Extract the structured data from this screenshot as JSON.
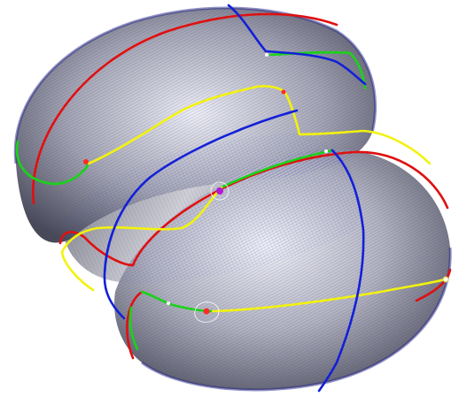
{
  "colors": {
    "background": "#ffffff",
    "mesh_wire": "#2233cc",
    "surface_light": "#e9e9ec",
    "surface_dark": "#4d4d57",
    "curve_red": "#e01010",
    "curve_green": "#19d319",
    "curve_yellow": "#f2f20e",
    "curve_blue": "#1320d8",
    "marker": "#ff2a2a",
    "marker_ring": "#ffffff"
  },
  "curves": [
    {
      "name": "red",
      "color_key": "curve_red"
    },
    {
      "name": "green",
      "color_key": "curve_green"
    },
    {
      "name": "yellow",
      "color_key": "curve_yellow"
    },
    {
      "name": "blue",
      "color_key": "curve_blue"
    }
  ]
}
